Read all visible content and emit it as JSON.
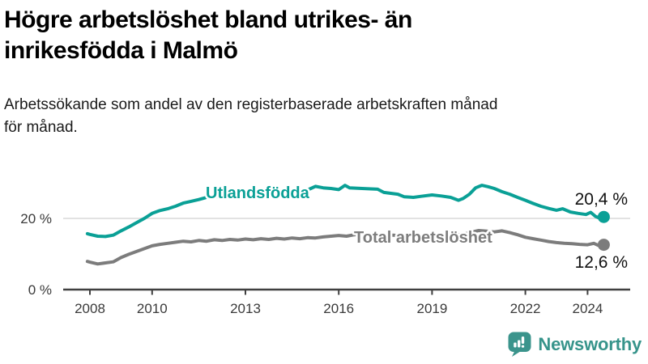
{
  "header": {
    "title_line1": "Högre arbetslöshet bland utrikes- än",
    "title_line2": "inrikesfödda i Malmö",
    "subtitle_line1": "Arbetssökande som andel av den registerbaserade arbetskraften månad",
    "subtitle_line2": "för månad."
  },
  "chart_data": {
    "type": "line",
    "title": "Högre arbetslöshet bland utrikes- än inrikesfödda i Malmö",
    "subtitle": "Arbetssökande som andel av den registerbaserade arbetskraften månad för månad.",
    "xlabel": "",
    "ylabel": "",
    "grid": "horizontal gridline at 20 % only",
    "legend_position": "inline labels on lines",
    "xlim": [
      2007.1,
      2025.4
    ],
    "ylim": [
      0,
      36
    ],
    "x_ticks": [
      2008,
      2010,
      2013,
      2016,
      2019,
      2022,
      2024
    ],
    "y_ticks": [
      {
        "value": 20,
        "label": "20 %"
      },
      {
        "value": 0,
        "label": "0 %"
      }
    ],
    "series": [
      {
        "name": "Utlandsfödda",
        "color": "#0aa096",
        "end_value": 20.4,
        "end_label": "20,4 %",
        "points": [
          [
            2007.92,
            15.7
          ],
          [
            2008.0,
            15.5
          ],
          [
            2008.25,
            15.0
          ],
          [
            2008.5,
            14.9
          ],
          [
            2008.75,
            15.3
          ],
          [
            2009.0,
            16.5
          ],
          [
            2009.25,
            17.6
          ],
          [
            2009.5,
            18.8
          ],
          [
            2009.75,
            20.0
          ],
          [
            2010.0,
            21.4
          ],
          [
            2010.25,
            22.2
          ],
          [
            2010.5,
            22.7
          ],
          [
            2010.75,
            23.4
          ],
          [
            2011.0,
            24.3
          ],
          [
            2011.25,
            24.8
          ],
          [
            2011.5,
            25.3
          ],
          [
            2011.75,
            25.9
          ],
          [
            2012.0,
            26.2
          ],
          [
            2012.25,
            26.0
          ],
          [
            2012.5,
            26.4
          ],
          [
            2012.75,
            26.6
          ],
          [
            2013.0,
            26.4
          ],
          [
            2013.25,
            26.8
          ],
          [
            2013.5,
            26.6
          ],
          [
            2013.75,
            27.0
          ],
          [
            2014.0,
            27.3
          ],
          [
            2014.25,
            27.1
          ],
          [
            2014.5,
            27.5
          ],
          [
            2014.75,
            27.7
          ],
          [
            2015.0,
            28.0
          ],
          [
            2015.25,
            29.0
          ],
          [
            2015.5,
            28.6
          ],
          [
            2015.75,
            28.4
          ],
          [
            2016.0,
            28.1
          ],
          [
            2016.2,
            29.3
          ],
          [
            2016.35,
            28.6
          ],
          [
            2016.75,
            28.4
          ],
          [
            2017.25,
            28.2
          ],
          [
            2017.45,
            27.3
          ],
          [
            2017.9,
            26.8
          ],
          [
            2018.1,
            26.1
          ],
          [
            2018.4,
            25.9
          ],
          [
            2018.65,
            26.2
          ],
          [
            2019.0,
            26.6
          ],
          [
            2019.3,
            26.3
          ],
          [
            2019.6,
            25.9
          ],
          [
            2019.85,
            25.1
          ],
          [
            2020.0,
            25.6
          ],
          [
            2020.2,
            26.8
          ],
          [
            2020.4,
            28.6
          ],
          [
            2020.6,
            29.3
          ],
          [
            2020.8,
            28.9
          ],
          [
            2021.0,
            28.4
          ],
          [
            2021.25,
            27.5
          ],
          [
            2021.5,
            26.8
          ],
          [
            2021.75,
            25.9
          ],
          [
            2022.0,
            25.1
          ],
          [
            2022.25,
            24.2
          ],
          [
            2022.5,
            23.4
          ],
          [
            2022.75,
            22.8
          ],
          [
            2023.0,
            22.3
          ],
          [
            2023.2,
            22.7
          ],
          [
            2023.45,
            21.8
          ],
          [
            2023.7,
            21.4
          ],
          [
            2023.95,
            21.1
          ],
          [
            2024.1,
            21.7
          ],
          [
            2024.25,
            20.6
          ],
          [
            2024.4,
            20.0
          ],
          [
            2024.52,
            20.4
          ]
        ]
      },
      {
        "name": "Total arbetslöshet",
        "color": "#7c7c7c",
        "end_value": 12.6,
        "end_label": "12,6 %",
        "points": [
          [
            2007.92,
            7.9
          ],
          [
            2008.0,
            7.7
          ],
          [
            2008.25,
            7.2
          ],
          [
            2008.5,
            7.5
          ],
          [
            2008.75,
            7.8
          ],
          [
            2009.0,
            9.0
          ],
          [
            2009.25,
            9.9
          ],
          [
            2009.5,
            10.7
          ],
          [
            2009.75,
            11.5
          ],
          [
            2010.0,
            12.3
          ],
          [
            2010.25,
            12.7
          ],
          [
            2010.5,
            13.0
          ],
          [
            2010.75,
            13.3
          ],
          [
            2011.0,
            13.6
          ],
          [
            2011.25,
            13.4
          ],
          [
            2011.5,
            13.8
          ],
          [
            2011.75,
            13.6
          ],
          [
            2012.0,
            14.0
          ],
          [
            2012.25,
            13.8
          ],
          [
            2012.5,
            14.1
          ],
          [
            2012.75,
            13.9
          ],
          [
            2013.0,
            14.2
          ],
          [
            2013.25,
            14.0
          ],
          [
            2013.5,
            14.3
          ],
          [
            2013.75,
            14.1
          ],
          [
            2014.0,
            14.4
          ],
          [
            2014.25,
            14.2
          ],
          [
            2014.5,
            14.5
          ],
          [
            2014.75,
            14.3
          ],
          [
            2015.0,
            14.6
          ],
          [
            2015.25,
            14.5
          ],
          [
            2015.5,
            14.8
          ],
          [
            2015.75,
            15.0
          ],
          [
            2016.0,
            15.2
          ],
          [
            2016.25,
            15.0
          ],
          [
            2016.5,
            15.4
          ],
          [
            2016.75,
            15.6
          ],
          [
            2017.0,
            15.4
          ],
          [
            2017.25,
            15.2
          ],
          [
            2017.5,
            15.0
          ],
          [
            2017.75,
            15.3
          ],
          [
            2018.0,
            15.1
          ],
          [
            2018.25,
            14.9
          ],
          [
            2018.5,
            15.2
          ],
          [
            2018.75,
            15.0
          ],
          [
            2019.0,
            15.2
          ],
          [
            2019.25,
            15.0
          ],
          [
            2019.5,
            15.1
          ],
          [
            2019.75,
            15.3
          ],
          [
            2020.0,
            15.5
          ],
          [
            2020.25,
            16.1
          ],
          [
            2020.5,
            16.6
          ],
          [
            2020.75,
            16.4
          ],
          [
            2021.0,
            16.2
          ],
          [
            2021.25,
            16.5
          ],
          [
            2021.5,
            16.0
          ],
          [
            2021.75,
            15.4
          ],
          [
            2022.0,
            14.7
          ],
          [
            2022.25,
            14.3
          ],
          [
            2022.5,
            13.9
          ],
          [
            2022.75,
            13.5
          ],
          [
            2023.0,
            13.2
          ],
          [
            2023.25,
            13.0
          ],
          [
            2023.5,
            12.9
          ],
          [
            2023.75,
            12.7
          ],
          [
            2024.0,
            12.6
          ],
          [
            2024.2,
            13.0
          ],
          [
            2024.35,
            12.4
          ],
          [
            2024.52,
            12.6
          ]
        ]
      }
    ]
  },
  "footer": {
    "brand": "Newsworthy",
    "logo_icon": "bar-chart-speech-bubble-icon",
    "logo_color": "#3b948c"
  },
  "colors": {
    "accent_teal": "#0aa096",
    "series_gray": "#7c7c7c",
    "gridline": "#d9d9d9",
    "axis": "#404040",
    "text": "#1a1a1a"
  }
}
